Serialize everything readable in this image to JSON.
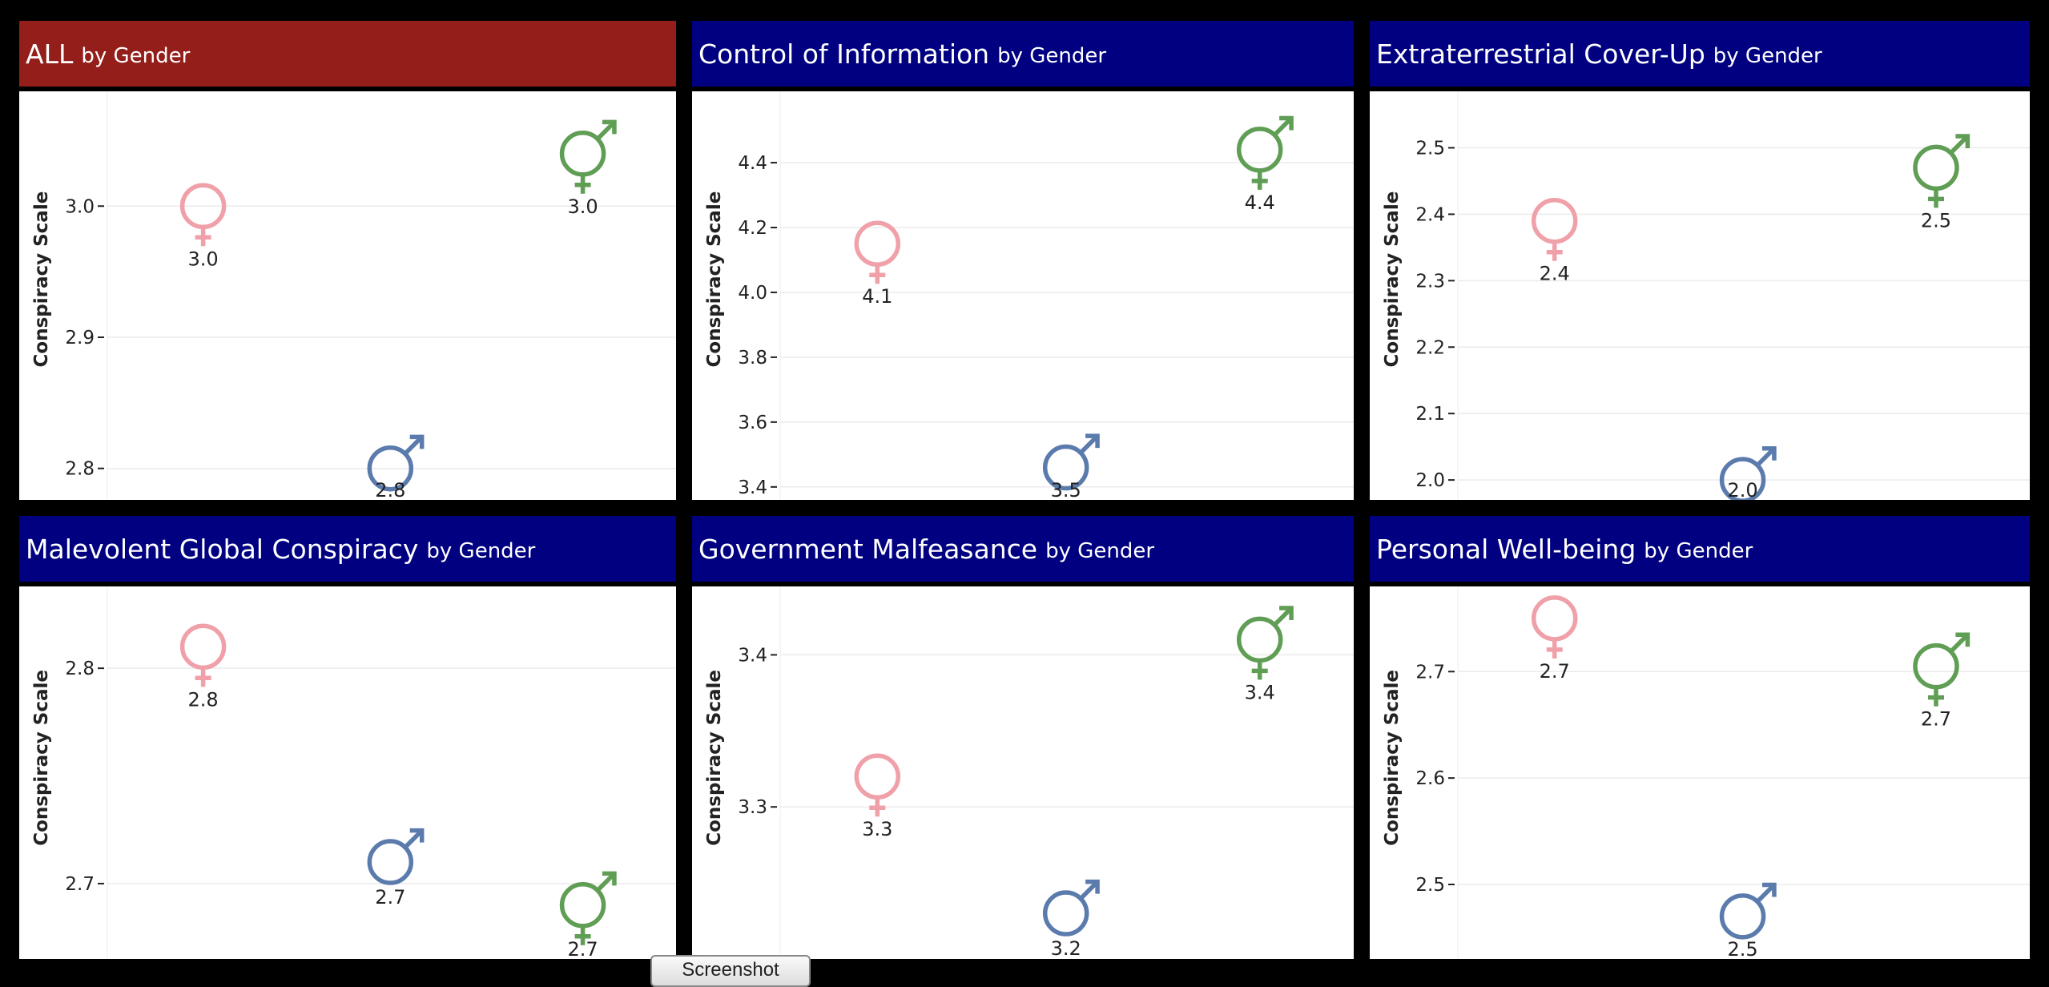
{
  "ui": {
    "by_gender": "by Gender",
    "screenshot_button": "Screenshot"
  },
  "colors": {
    "header_highlight": "#941e19",
    "header_default": "#000080",
    "female": "#f0a0a8",
    "male": "#5b7bad",
    "other": "#5f9e54"
  },
  "icons": {
    "female": "female-symbol-icon",
    "male": "male-symbol-icon",
    "other": "transgender-symbol-icon"
  },
  "chart_data": [
    {
      "type": "scatter",
      "title": "ALL",
      "subtitle": "by Gender",
      "ylabel": "Conspiracy Scale",
      "ylim": [
        2.776,
        3.0875
      ],
      "yticks": [
        "2.8",
        "2.9",
        "3.0"
      ],
      "grid": true,
      "series": [
        {
          "category": "female",
          "value": 3.0,
          "label": "3.0"
        },
        {
          "category": "male",
          "value": 2.8,
          "label": "2.8"
        },
        {
          "category": "other",
          "value": 3.04,
          "label": "3.0"
        }
      ]
    },
    {
      "type": "scatter",
      "title": "Control of Information",
      "subtitle": "by Gender",
      "ylabel": "Conspiracy Scale",
      "ylim": [
        3.36,
        4.62
      ],
      "yticks": [
        "3.4",
        "3.6",
        "3.8",
        "4.0",
        "4.2",
        "4.4"
      ],
      "grid": true,
      "series": [
        {
          "category": "female",
          "value": 4.15,
          "label": "4.1"
        },
        {
          "category": "male",
          "value": 3.46,
          "label": "3.5"
        },
        {
          "category": "other",
          "value": 4.44,
          "label": "4.4"
        }
      ]
    },
    {
      "type": "scatter",
      "title": "Extraterrestrial Cover-Up",
      "subtitle": "by Gender",
      "ylabel": "Conspiracy Scale",
      "ylim": [
        1.97,
        2.585
      ],
      "yticks": [
        "2.0",
        "2.1",
        "2.2",
        "2.3",
        "2.4",
        "2.5"
      ],
      "grid": true,
      "series": [
        {
          "category": "female",
          "value": 2.39,
          "label": "2.4"
        },
        {
          "category": "male",
          "value": 2.0,
          "label": "2.0"
        },
        {
          "category": "other",
          "value": 2.47,
          "label": "2.5"
        }
      ]
    },
    {
      "type": "scatter",
      "title": "Malevolent Global Conspiracy",
      "subtitle": "by Gender",
      "ylabel": "Conspiracy Scale",
      "ylim": [
        2.665,
        2.838
      ],
      "yticks": [
        "2.7",
        "2.8"
      ],
      "grid": true,
      "series": [
        {
          "category": "female",
          "value": 2.81,
          "label": "2.8"
        },
        {
          "category": "male",
          "value": 2.71,
          "label": "2.7"
        },
        {
          "category": "other",
          "value": 2.69,
          "label": "2.7"
        }
      ]
    },
    {
      "type": "scatter",
      "title": "Government Malfeasance",
      "subtitle": "by Gender",
      "ylabel": "Conspiracy Scale",
      "ylim": [
        3.2,
        3.445
      ],
      "yticks": [
        "3.3",
        "3.4"
      ],
      "grid": true,
      "series": [
        {
          "category": "female",
          "value": 3.32,
          "label": "3.3"
        },
        {
          "category": "male",
          "value": 3.23,
          "label": "3.2"
        },
        {
          "category": "other",
          "value": 3.41,
          "label": "3.4"
        }
      ]
    },
    {
      "type": "scatter",
      "title": "Personal Well-being",
      "subtitle": "by Gender",
      "ylabel": "Conspiracy Scale",
      "ylim": [
        2.43,
        2.78
      ],
      "yticks": [
        "2.5",
        "2.6",
        "2.7"
      ],
      "grid": true,
      "series": [
        {
          "category": "female",
          "value": 2.75,
          "label": "2.7"
        },
        {
          "category": "male",
          "value": 2.47,
          "label": "2.5"
        },
        {
          "category": "other",
          "value": 2.705,
          "label": "2.7"
        }
      ]
    }
  ]
}
